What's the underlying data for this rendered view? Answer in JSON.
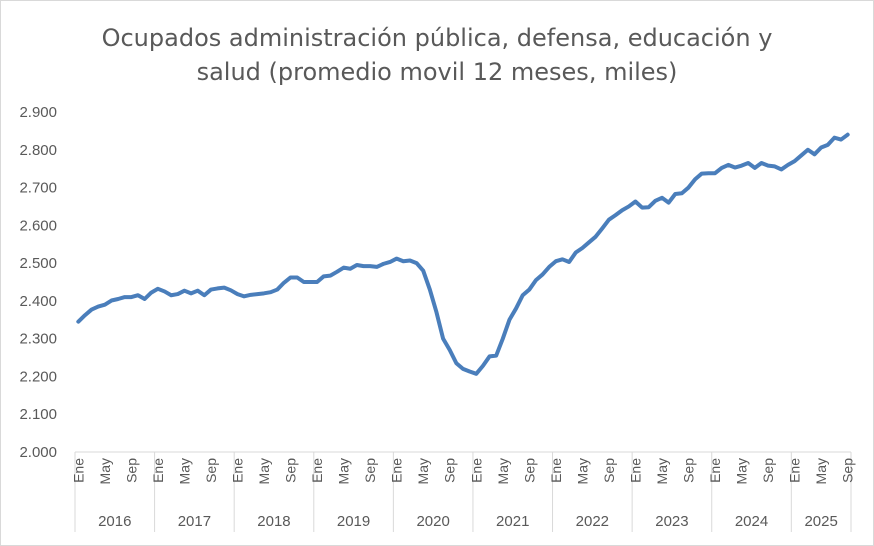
{
  "chart_data": {
    "type": "line",
    "title_lines": [
      "Ocupados administración pública, defensa, educación y",
      "salud (promedio movil 12 meses, miles)"
    ],
    "xlabel": "",
    "ylabel": "",
    "ylim": [
      2000,
      2900
    ],
    "grid": false,
    "legend": "none",
    "y_tick_values": [
      2000,
      2100,
      2200,
      2300,
      2400,
      2500,
      2600,
      2700,
      2800,
      2900
    ],
    "y_tick_labels": [
      "2.000",
      "2.100",
      "2.200",
      "2.300",
      "2.400",
      "2.500",
      "2.600",
      "2.700",
      "2.800",
      "2.900"
    ],
    "month_labels": [
      "Ene",
      "May",
      "Sep"
    ],
    "years": [
      "2016",
      "2017",
      "2018",
      "2019",
      "2020",
      "2021",
      "2022",
      "2023",
      "2024",
      "2025"
    ],
    "series_color": "#4a7ebb",
    "series": [
      {
        "name": "Ocupados administración pública, defensa, educación y salud",
        "values": [
          2345,
          2362,
          2377,
          2385,
          2390,
          2401,
          2405,
          2410,
          2410,
          2415,
          2405,
          2422,
          2432,
          2425,
          2415,
          2418,
          2427,
          2420,
          2427,
          2415,
          2430,
          2433,
          2435,
          2428,
          2418,
          2412,
          2416,
          2418,
          2420,
          2423,
          2430,
          2448,
          2462,
          2462,
          2450,
          2450,
          2450,
          2465,
          2467,
          2477,
          2488,
          2485,
          2495,
          2492,
          2492,
          2490,
          2498,
          2503,
          2512,
          2505,
          2507,
          2500,
          2480,
          2430,
          2370,
          2300,
          2270,
          2235,
          2220,
          2213,
          2207,
          2228,
          2253,
          2255,
          2300,
          2350,
          2380,
          2415,
          2430,
          2455,
          2470,
          2490,
          2505,
          2510,
          2503,
          2528,
          2540,
          2555,
          2570,
          2592,
          2615,
          2627,
          2640,
          2650,
          2663,
          2647,
          2648,
          2665,
          2673,
          2660,
          2683,
          2685,
          2700,
          2722,
          2737,
          2738,
          2738,
          2752,
          2760,
          2753,
          2758,
          2765,
          2752,
          2765,
          2758,
          2756,
          2748,
          2760,
          2770,
          2785,
          2800,
          2788,
          2806,
          2813,
          2832,
          2827,
          2840
        ]
      }
    ]
  }
}
